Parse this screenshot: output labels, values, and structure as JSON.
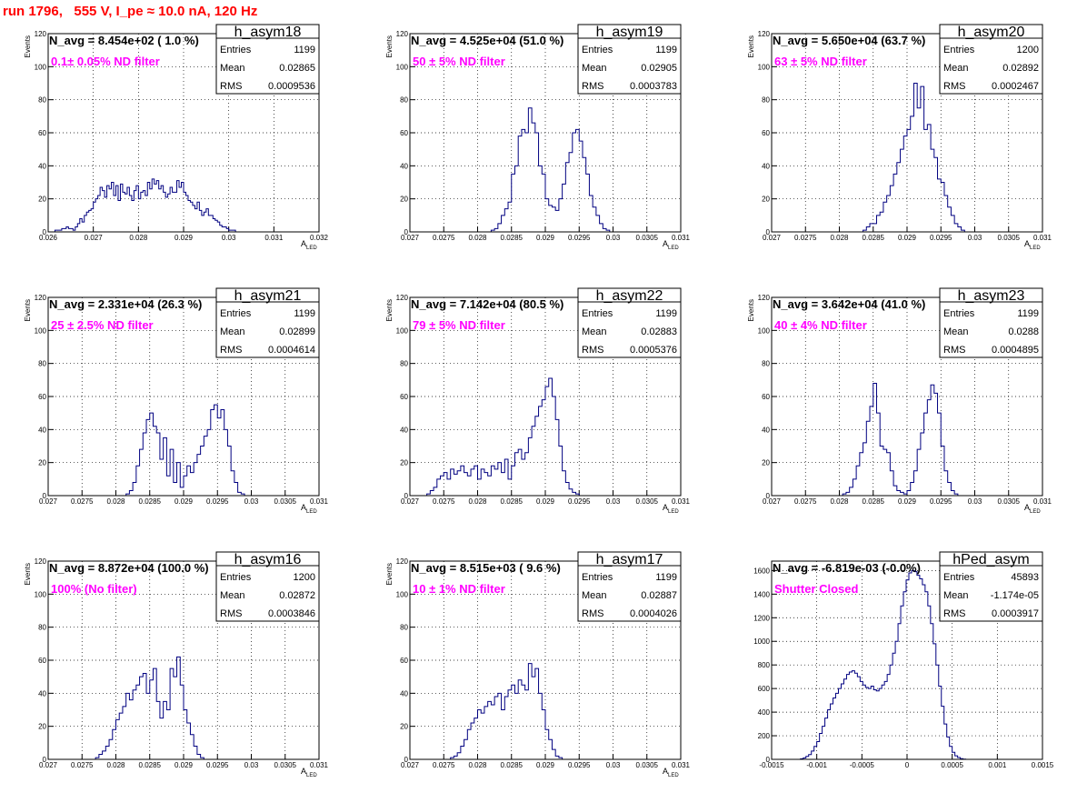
{
  "run_title": "run 1796,   555 V, I_pe ≈ 10.0 nA, 120 Hz",
  "colors": {
    "hist": "#000080",
    "filter_label": "#ff00ff",
    "run_title": "#ff0000",
    "grid": "#000000"
  },
  "chart_data": [
    {
      "type": "histogram",
      "name": "h_asym18",
      "navg": "N_avg = 8.454e+02 ( 1.0 %)",
      "filter": "0.1± 0.05% ND filter",
      "stats": [
        [
          "Entries",
          "1199"
        ],
        [
          "Mean",
          "0.02865"
        ],
        [
          "RMS",
          "0.0009536"
        ]
      ],
      "xlabel_main": "A",
      "xlabel_sub": "LED",
      "ylabel": "Events",
      "xlim": [
        0.026,
        0.032
      ],
      "ylim": [
        0,
        120
      ],
      "xticks": [
        "0.026",
        "0.027",
        "0.028",
        "0.029",
        "0.03",
        "0.031",
        "0.032"
      ],
      "yticks": [
        "0",
        "20",
        "40",
        "60",
        "80",
        "100",
        "120"
      ],
      "bin_width": 5e-05,
      "counts_start": 0.0261,
      "counts": [
        0,
        1,
        1,
        1,
        2,
        2,
        3,
        2,
        2,
        1,
        3,
        5,
        8,
        6,
        10,
        12,
        13,
        14,
        18,
        20,
        22,
        27,
        25,
        21,
        28,
        26,
        30,
        22,
        28,
        19,
        29,
        24,
        23,
        27,
        22,
        19,
        25,
        28,
        20,
        24,
        25,
        22,
        30,
        26,
        32,
        29,
        31,
        26,
        28,
        24,
        21,
        23,
        27,
        24,
        24,
        31,
        27,
        30,
        24,
        22,
        19,
        18,
        16,
        14,
        18,
        13,
        10,
        12,
        14,
        10,
        10,
        8,
        7,
        6,
        4,
        3,
        3,
        2,
        1,
        1,
        1,
        0,
        0,
        0,
        0,
        0,
        0,
        0,
        0,
        0,
        0,
        0,
        0,
        0,
        0,
        0,
        0,
        0,
        0,
        0,
        0,
        0,
        0,
        0,
        0,
        0,
        0,
        0,
        0,
        0,
        0,
        0,
        0
      ]
    },
    {
      "type": "histogram",
      "name": "h_asym19",
      "navg": "N_avg = 4.525e+04 (51.0 %)",
      "filter": "50 ± 5% ND filter",
      "stats": [
        [
          "Entries",
          "1199"
        ],
        [
          "Mean",
          "0.02905"
        ],
        [
          "RMS",
          "0.0003783"
        ]
      ],
      "xlabel_main": "A",
      "xlabel_sub": "LED",
      "ylabel": "Events",
      "xlim": [
        0.027,
        0.031
      ],
      "ylim": [
        0,
        120
      ],
      "xticks": [
        "0.027",
        "0.0275",
        "0.028",
        "0.0285",
        "0.029",
        "0.0295",
        "0.03",
        "0.0305",
        "0.031"
      ],
      "yticks": [
        "0",
        "20",
        "40",
        "60",
        "80",
        "100",
        "120"
      ],
      "bin_width": 5e-05,
      "counts_start": 0.0282,
      "counts": [
        1,
        2,
        5,
        10,
        14,
        18,
        35,
        40,
        58,
        62,
        60,
        75,
        66,
        60,
        40,
        35,
        20,
        16,
        15,
        13,
        20,
        29,
        42,
        48,
        60,
        62,
        55,
        45,
        35,
        22,
        15,
        10,
        5,
        2,
        1,
        0
      ]
    },
    {
      "type": "histogram",
      "name": "h_asym20",
      "navg": "N_avg = 5.650e+04 (63.7 %)",
      "filter": "63 ± 5% ND filter",
      "stats": [
        [
          "Entries",
          "1200"
        ],
        [
          "Mean",
          "0.02892"
        ],
        [
          "RMS",
          "0.0002467"
        ]
      ],
      "xlabel_main": "A",
      "xlabel_sub": "LED",
      "ylabel": "Events",
      "xlim": [
        0.027,
        0.031
      ],
      "ylim": [
        0,
        120
      ],
      "xticks": [
        "0.027",
        "0.0275",
        "0.028",
        "0.0285",
        "0.029",
        "0.0295",
        "0.03",
        "0.0305",
        "0.031"
      ],
      "yticks": [
        "0",
        "20",
        "40",
        "60",
        "80",
        "100",
        "120"
      ],
      "bin_width": 5e-05,
      "counts_start": 0.02835,
      "counts": [
        1,
        3,
        5,
        5,
        10,
        12,
        18,
        22,
        28,
        35,
        42,
        50,
        58,
        62,
        70,
        90,
        75,
        88,
        62,
        65,
        50,
        45,
        32,
        30,
        22,
        15,
        10,
        5,
        3,
        1,
        0
      ]
    },
    {
      "type": "histogram",
      "name": "h_asym21",
      "navg": "N_avg = 2.331e+04 (26.3 %)",
      "filter": "25 ± 2.5% ND filter",
      "stats": [
        [
          "Entries",
          "1199"
        ],
        [
          "Mean",
          "0.02899"
        ],
        [
          "RMS",
          "0.0004614"
        ]
      ],
      "xlabel_main": "A",
      "xlabel_sub": "LED",
      "ylabel": "Events",
      "xlim": [
        0.027,
        0.031
      ],
      "ylim": [
        0,
        120
      ],
      "xticks": [
        "0.027",
        "0.0275",
        "0.028",
        "0.0285",
        "0.029",
        "0.0295",
        "0.03",
        "0.0305",
        "0.031"
      ],
      "yticks": [
        "0",
        "20",
        "40",
        "60",
        "80",
        "100",
        "120"
      ],
      "bin_width": 5e-05,
      "counts_start": 0.02815,
      "counts": [
        1,
        3,
        8,
        18,
        28,
        38,
        46,
        50,
        42,
        38,
        22,
        35,
        12,
        28,
        8,
        20,
        5,
        12,
        18,
        14,
        20,
        25,
        30,
        36,
        40,
        52,
        55,
        47,
        52,
        40,
        30,
        15,
        8,
        2,
        1,
        0
      ]
    },
    {
      "type": "histogram",
      "name": "h_asym22",
      "navg": "N_avg = 7.142e+04 (80.5 %)",
      "filter": "79 ± 5% ND filter",
      "stats": [
        [
          "Entries",
          "1199"
        ],
        [
          "Mean",
          "0.02883"
        ],
        [
          "RMS",
          "0.0005376"
        ]
      ],
      "xlabel_main": "A",
      "xlabel_sub": "LED",
      "ylabel": "Events",
      "xlim": [
        0.027,
        0.031
      ],
      "ylim": [
        0,
        120
      ],
      "xticks": [
        "0.027",
        "0.0275",
        "0.028",
        "0.0285",
        "0.029",
        "0.0295",
        "0.03",
        "0.0305",
        "0.031"
      ],
      "yticks": [
        "0",
        "20",
        "40",
        "60",
        "80",
        "100",
        "120"
      ],
      "bin_width": 5e-05,
      "counts_start": 0.02725,
      "counts": [
        1,
        3,
        5,
        10,
        12,
        14,
        10,
        16,
        13,
        15,
        18,
        14,
        12,
        16,
        18,
        10,
        16,
        14,
        12,
        18,
        16,
        20,
        14,
        22,
        10,
        18,
        26,
        28,
        22,
        26,
        35,
        42,
        48,
        54,
        58,
        66,
        71,
        60,
        46,
        30,
        15,
        8,
        4,
        2,
        1,
        0
      ]
    },
    {
      "type": "histogram",
      "name": "h_asym23",
      "navg": "N_avg = 3.642e+04 (41.0 %)",
      "filter": "40 ± 4% ND filter",
      "stats": [
        [
          "Entries",
          "1199"
        ],
        [
          "Mean",
          "0.0288"
        ],
        [
          "RMS",
          "0.0004895"
        ]
      ],
      "xlabel_main": "A",
      "xlabel_sub": "LED",
      "ylabel": "Events",
      "xlim": [
        0.027,
        0.031
      ],
      "ylim": [
        0,
        120
      ],
      "xticks": [
        "0.027",
        "0.0275",
        "0.028",
        "0.0285",
        "0.029",
        "0.0295",
        "0.03",
        "0.0305",
        "0.031"
      ],
      "yticks": [
        "0",
        "20",
        "40",
        "60",
        "80",
        "100",
        "120"
      ],
      "bin_width": 5e-05,
      "counts_start": 0.02805,
      "counts": [
        1,
        2,
        5,
        10,
        18,
        26,
        32,
        45,
        54,
        68,
        50,
        30,
        28,
        26,
        15,
        6,
        3,
        2,
        1,
        3,
        8,
        15,
        28,
        38,
        50,
        58,
        67,
        62,
        50,
        30,
        15,
        8,
        3,
        1,
        0
      ]
    },
    {
      "type": "histogram",
      "name": "h_asym16",
      "navg": "N_avg = 8.872e+04 (100.0 %)",
      "filter": "100% (No filter)",
      "stats": [
        [
          "Entries",
          "1200"
        ],
        [
          "Mean",
          "0.02872"
        ],
        [
          "RMS",
          "0.0003846"
        ]
      ],
      "xlabel_main": "A",
      "xlabel_sub": "LED",
      "ylabel": "Events",
      "xlim": [
        0.027,
        0.031
      ],
      "ylim": [
        0,
        120
      ],
      "xticks": [
        "0.027",
        "0.0275",
        "0.028",
        "0.0285",
        "0.029",
        "0.0295",
        "0.03",
        "0.0305",
        "0.031"
      ],
      "yticks": [
        "0",
        "20",
        "40",
        "60",
        "80",
        "100",
        "120"
      ],
      "bin_width": 5e-05,
      "counts_start": 0.0277,
      "counts": [
        1,
        3,
        5,
        8,
        12,
        18,
        24,
        28,
        32,
        40,
        36,
        42,
        45,
        50,
        52,
        40,
        48,
        55,
        35,
        25,
        35,
        30,
        55,
        50,
        62,
        45,
        30,
        22,
        15,
        8,
        3,
        1,
        0
      ]
    },
    {
      "type": "histogram",
      "name": "h_asym17",
      "navg": "N_avg = 8.515e+03 ( 9.6 %)",
      "filter": "10 ± 1% ND filter",
      "stats": [
        [
          "Entries",
          "1199"
        ],
        [
          "Mean",
          "0.02887"
        ],
        [
          "RMS",
          "0.0004026"
        ]
      ],
      "xlabel_main": "A",
      "xlabel_sub": "LED",
      "ylabel": "Events",
      "xlim": [
        0.027,
        0.031
      ],
      "ylim": [
        0,
        120
      ],
      "xticks": [
        "0.027",
        "0.0275",
        "0.028",
        "0.0285",
        "0.029",
        "0.0295",
        "0.03",
        "0.0305",
        "0.031"
      ],
      "yticks": [
        "0",
        "20",
        "40",
        "60",
        "80",
        "100",
        "120"
      ],
      "bin_width": 5e-05,
      "counts_start": 0.0276,
      "counts": [
        1,
        2,
        4,
        8,
        12,
        18,
        22,
        25,
        30,
        28,
        32,
        35,
        33,
        38,
        40,
        30,
        38,
        42,
        45,
        40,
        48,
        45,
        42,
        58,
        50,
        55,
        40,
        30,
        18,
        12,
        6,
        2,
        1,
        0
      ]
    },
    {
      "type": "histogram",
      "name": "hPed_asym",
      "navg": "N_avg = -6.819e-03 (-0.0%)",
      "filter": "Shutter Closed",
      "stats": [
        [
          "Entries",
          "45893"
        ],
        [
          "Mean",
          "-1.174e-05"
        ],
        [
          "RMS",
          "0.0003917"
        ]
      ],
      "xlabel_main": "",
      "xlabel_sub": "",
      "ylabel": "",
      "xlim": [
        -0.0015,
        0.0015
      ],
      "ylim": [
        0,
        1680
      ],
      "xticks": [
        "-0.0015",
        "-0.001",
        "-0.0005",
        "0",
        "0.0005",
        "0.001",
        "0.0015"
      ],
      "yticks": [
        "0",
        "200",
        "400",
        "600",
        "800",
        "1000",
        "1200",
        "1400",
        "1600"
      ],
      "bin_width": 3e-05,
      "counts_start": -0.00118,
      "counts": [
        5,
        12,
        25,
        40,
        70,
        110,
        150,
        220,
        280,
        350,
        420,
        470,
        520,
        560,
        600,
        640,
        680,
        720,
        740,
        750,
        730,
        700,
        660,
        630,
        610,
        600,
        620,
        590,
        580,
        600,
        630,
        660,
        720,
        800,
        900,
        1000,
        1150,
        1300,
        1420,
        1520,
        1580,
        1600,
        1590,
        1560,
        1530,
        1480,
        1420,
        1300,
        1150,
        980,
        800,
        620,
        450,
        300,
        190,
        110,
        60,
        30,
        15,
        6,
        2,
        0
      ]
    }
  ]
}
